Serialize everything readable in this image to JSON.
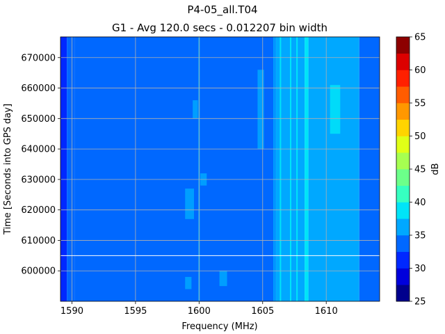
{
  "chart_data": {
    "type": "heatmap",
    "title": "P4-05_all.T04",
    "subtitle": "G1 - Avg 120.0 secs - 0.012207 bin width",
    "xlabel": "Frequency (MHz)",
    "ylabel": "Time [Seconds into GPS day]",
    "colorbar_label": "dB",
    "xlim": [
      1589.1,
      1614.2
    ],
    "ylim": [
      590000,
      676800
    ],
    "x_ticks": [
      1590,
      1595,
      1600,
      1605,
      1610
    ],
    "y_ticks": [
      600000,
      610000,
      620000,
      630000,
      640000,
      650000,
      660000,
      670000
    ],
    "grid": true,
    "extra_hline_y": 605000,
    "colorbar_levels": [
      25,
      27.5,
      30,
      32.5,
      35,
      37.5,
      40,
      42.5,
      45,
      47.5,
      50,
      52.5,
      55,
      57.5,
      60,
      62.5,
      65
    ],
    "colorbar_ticks": [
      25,
      30,
      35,
      40,
      45,
      50,
      55,
      60,
      65
    ],
    "colorbar_colors": [
      "#00008d",
      "#0000dc",
      "#0028ff",
      "#0068ff",
      "#00a8ff",
      "#00e4f8",
      "#36ffc1",
      "#6cff8a",
      "#a6ff51",
      "#e0ff17",
      "#ffd400",
      "#ff9800",
      "#ff5c00",
      "#ff2000",
      "#dc0000",
      "#8d0000"
    ],
    "bands": [
      {
        "x0": 1589.1,
        "x1": 1589.6,
        "level": 32
      },
      {
        "x0": 1589.6,
        "x1": 1590.2,
        "level": 33
      },
      {
        "x0": 1590.2,
        "x1": 1605.0,
        "level": 33.5
      },
      {
        "x0": 1605.0,
        "x1": 1606.0,
        "level": 34.5
      },
      {
        "x0": 1606.0,
        "x1": 1608.3,
        "level": 36
      },
      {
        "x0": 1608.3,
        "x1": 1608.6,
        "level": 38
      },
      {
        "x0": 1608.6,
        "x1": 1612.6,
        "level": 36
      },
      {
        "x0": 1612.6,
        "x1": 1614.2,
        "level": 34
      }
    ],
    "lines": [
      {
        "x": 1590.0,
        "level": 34
      },
      {
        "x": 1600.0,
        "level": 37
      },
      {
        "x": 1605.9,
        "level": 37
      },
      {
        "x": 1606.4,
        "level": 38
      },
      {
        "x": 1606.8,
        "level": 37
      },
      {
        "x": 1607.2,
        "level": 39
      },
      {
        "x": 1607.7,
        "level": 38
      },
      {
        "x": 1608.0,
        "level": 37
      },
      {
        "x": 1608.5,
        "level": 39
      },
      {
        "x": 1611.8,
        "level": 37
      }
    ],
    "patches": [
      {
        "x0": 1604.6,
        "x1": 1605.1,
        "y0": 640000,
        "y1": 666000,
        "level": 37
      },
      {
        "x0": 1610.3,
        "x1": 1611.1,
        "y0": 645000,
        "y1": 661000,
        "level": 38
      },
      {
        "x0": 1609.9,
        "x1": 1611.2,
        "y0": 593000,
        "y1": 625000,
        "level": 37
      },
      {
        "x0": 1598.9,
        "x1": 1599.6,
        "y0": 617000,
        "y1": 627000,
        "level": 35
      },
      {
        "x0": 1599.5,
        "x1": 1599.9,
        "y0": 650000,
        "y1": 656000,
        "level": 35
      },
      {
        "x0": 1601.6,
        "x1": 1602.2,
        "y0": 595000,
        "y1": 600000,
        "level": 35
      },
      {
        "x0": 1598.9,
        "x1": 1599.4,
        "y0": 594000,
        "y1": 598000,
        "level": 35
      },
      {
        "x0": 1600.1,
        "x1": 1600.6,
        "y0": 628000,
        "y1": 632000,
        "level": 35
      }
    ]
  }
}
